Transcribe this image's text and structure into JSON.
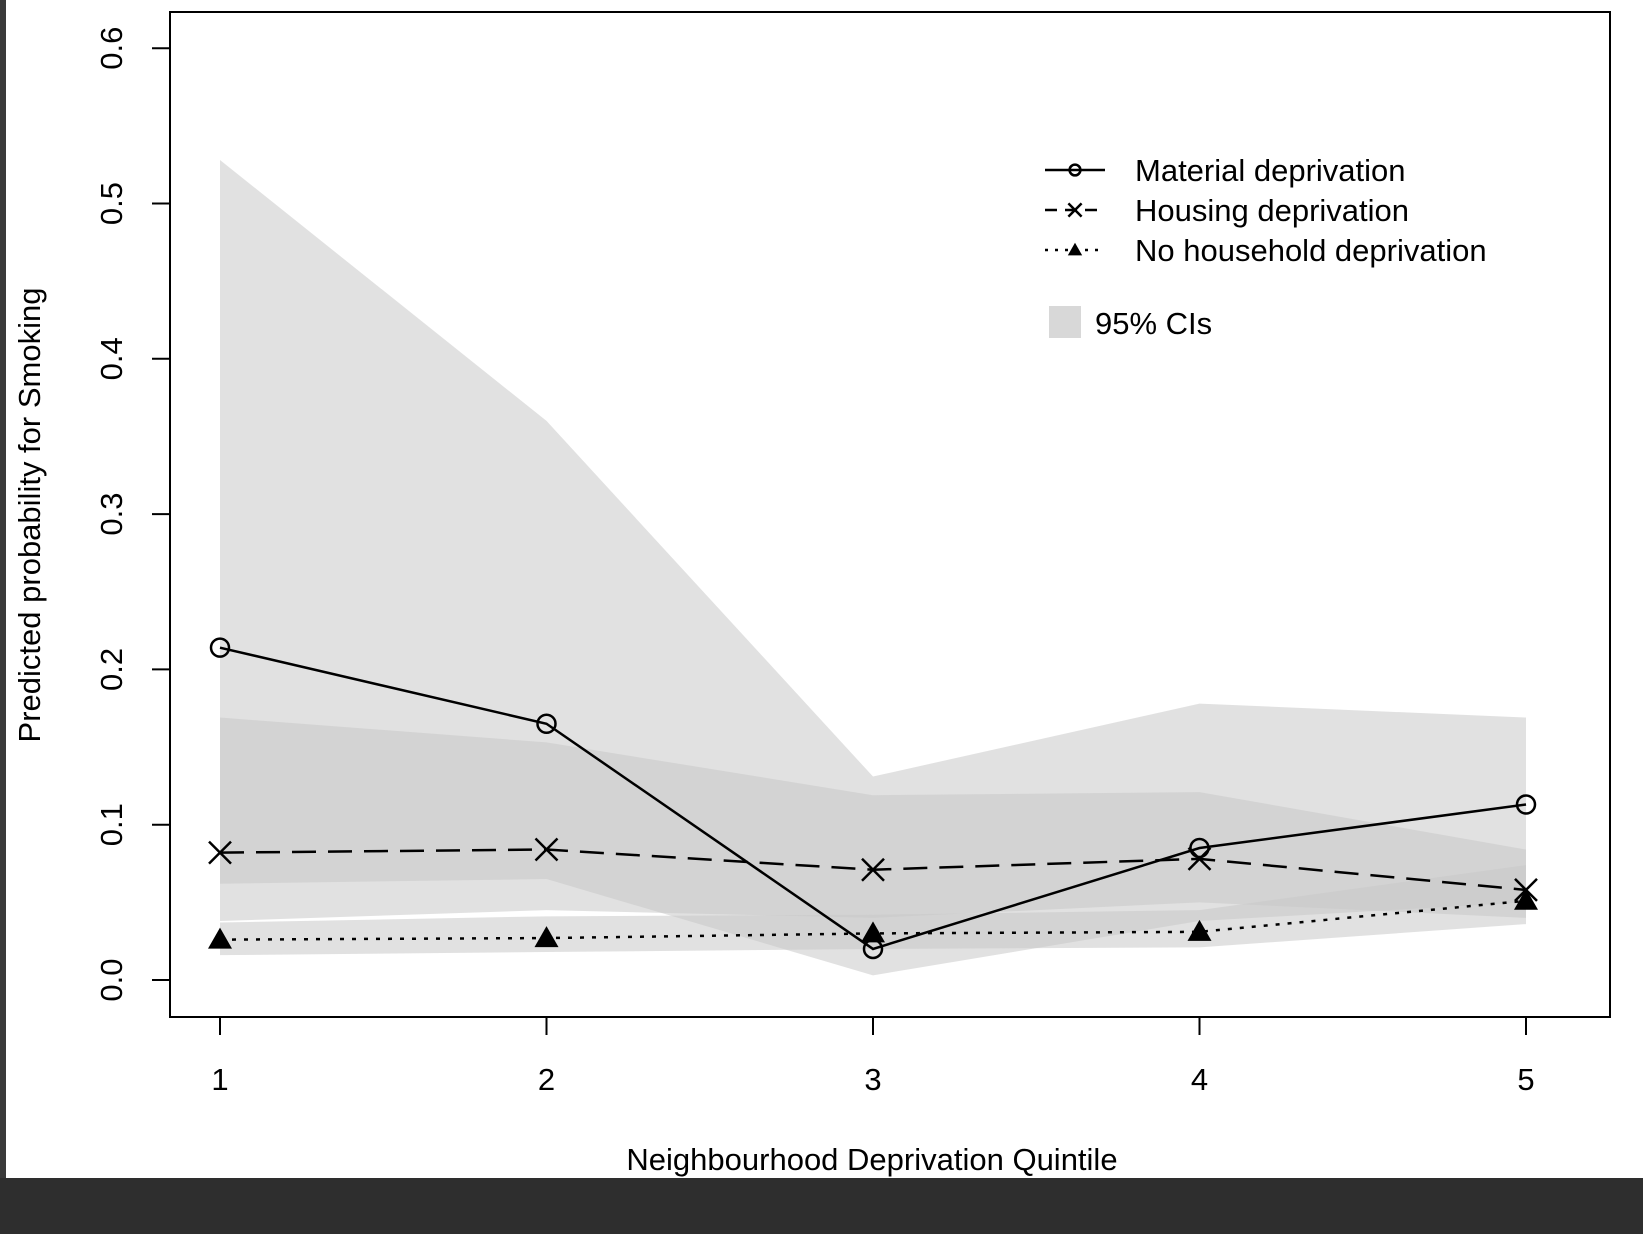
{
  "chart_data": {
    "type": "line",
    "xlabel": "Neighbourhood Deprivation Quintile",
    "ylabel": "Predicted probability for Smoking",
    "x": [
      1,
      2,
      3,
      4,
      5
    ],
    "x_ticks": [
      "1",
      "2",
      "3",
      "4",
      "5"
    ],
    "ylim": [
      0,
      0.6
    ],
    "y_ticks": [
      "0.0",
      "0.1",
      "0.2",
      "0.3",
      "0.4",
      "0.5",
      "0.6"
    ],
    "grid": false,
    "legend_position": "top-right",
    "series": [
      {
        "name": "Material deprivation",
        "values": [
          0.214,
          0.165,
          0.02,
          0.085,
          0.113
        ],
        "ci_lower": [
          0.062,
          0.065,
          0.003,
          0.038,
          0.05
        ],
        "ci_upper": [
          0.528,
          0.36,
          0.131,
          0.178,
          0.169
        ],
        "line_style": "solid",
        "marker": "open-circle"
      },
      {
        "name": "Housing deprivation",
        "values": [
          0.082,
          0.084,
          0.071,
          0.078,
          0.058
        ],
        "ci_lower": [
          0.038,
          0.045,
          0.04,
          0.05,
          0.04
        ],
        "ci_upper": [
          0.169,
          0.153,
          0.119,
          0.121,
          0.084
        ],
        "line_style": "dashed",
        "marker": "x"
      },
      {
        "name": "No household deprivation",
        "values": [
          0.026,
          0.027,
          0.03,
          0.031,
          0.051
        ],
        "ci_lower": [
          0.016,
          0.018,
          0.02,
          0.021,
          0.036
        ],
        "ci_upper": [
          0.037,
          0.041,
          0.042,
          0.045,
          0.074
        ],
        "line_style": "dotted",
        "marker": "filled-triangle"
      }
    ],
    "ci_legend_label": "95% CIs",
    "colors": {
      "line": "#000000",
      "ci_fill": "#c8c8c8"
    }
  }
}
